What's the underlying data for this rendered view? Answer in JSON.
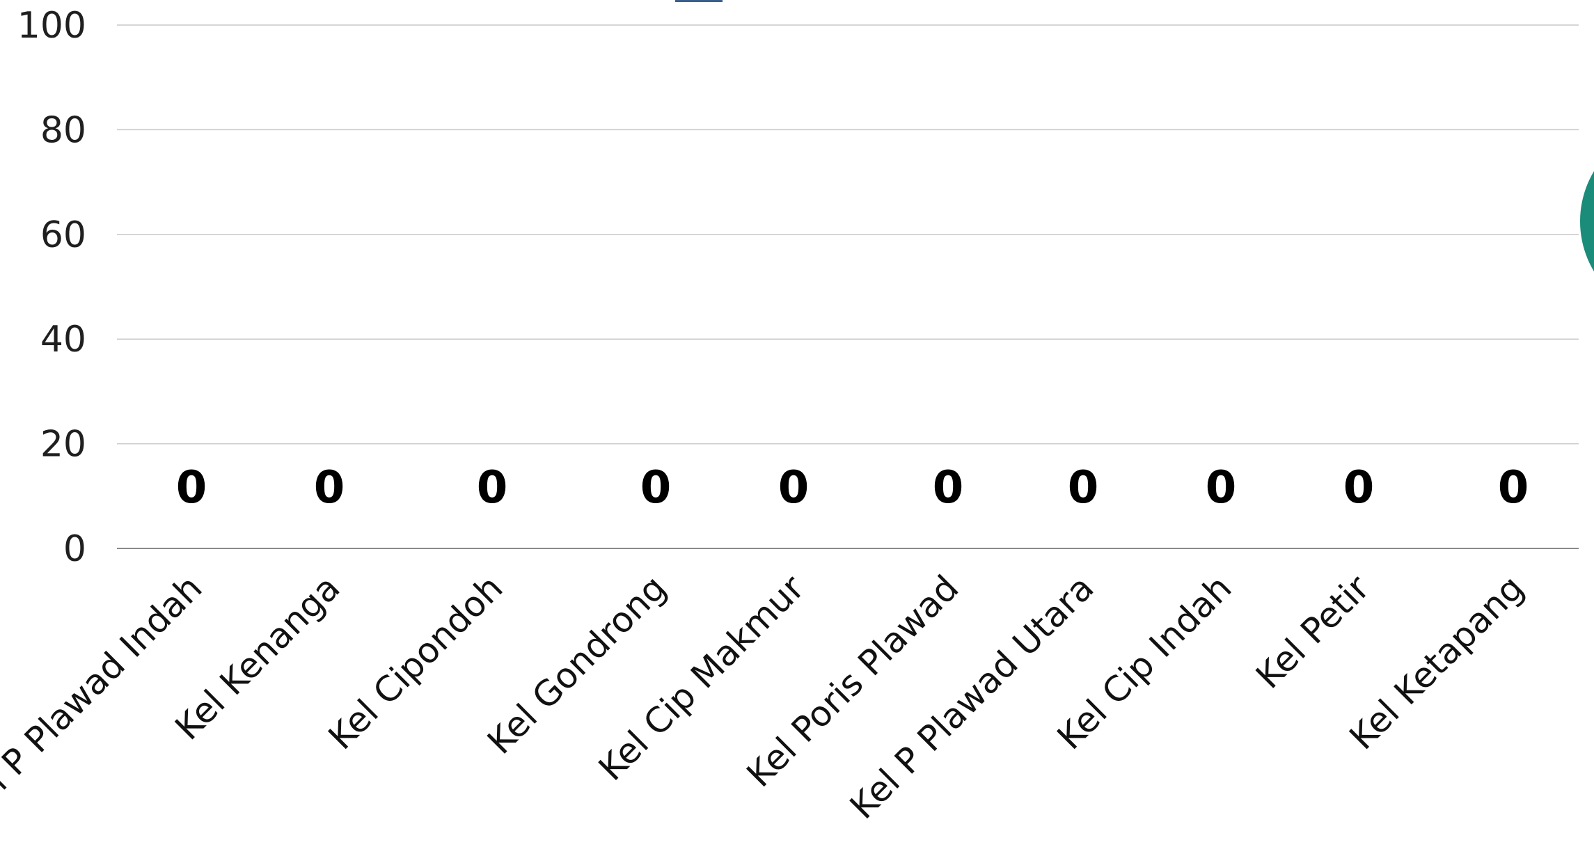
{
  "chart_data": {
    "type": "bar",
    "title": "",
    "xlabel": "",
    "ylabel": "",
    "ylim": [
      0,
      100
    ],
    "yticks": [
      0,
      20,
      40,
      60,
      80,
      100
    ],
    "grid": true,
    "categories": [
      "Kel P Plawad Indah",
      "Kel Kenanga",
      "Kel Cipondoh",
      "Kel Gondrong",
      "Kel Cip Makmur",
      "Kel Poris Plawad",
      "Kel P Plawad Utara",
      "Kel Cip Indah",
      "Kel Petir",
      "Kel Ketapang"
    ],
    "values": [
      0,
      0,
      0,
      0,
      0,
      0,
      0,
      0,
      0,
      0
    ],
    "data_labels": [
      "0",
      "0",
      "0",
      "0",
      "0",
      "0",
      "0",
      "0",
      "0",
      "0"
    ],
    "colors": {
      "grid": "#c8c8c8",
      "baseline": "#8a8a8a",
      "decoration_circle": "#1a8c79",
      "decoration_mark": "#3b5f8f"
    }
  }
}
